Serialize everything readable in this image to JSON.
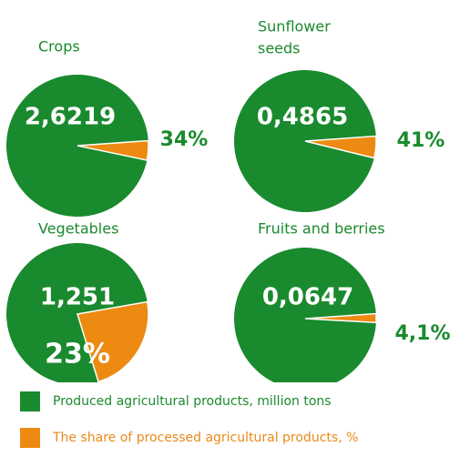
{
  "colors": {
    "produced": "#1a8a2e",
    "share": "#ec8a12",
    "share_text": "#e98a1a"
  },
  "chart_data": {
    "type": "pie",
    "charts": [
      {
        "title": [
          "Crops"
        ],
        "value_label": "2,6219",
        "share_percent": 34,
        "share_label": "34%"
      },
      {
        "title": [
          "Sunflower",
          "seeds"
        ],
        "value_label": "0,4865",
        "share_percent": 41,
        "share_label": "41%"
      },
      {
        "title": [
          "Vegetables"
        ],
        "value_label": "1,251",
        "share_percent": 23,
        "share_label": "23%"
      },
      {
        "title": [
          "Fruits and berries"
        ],
        "value_label": "0,0647",
        "share_percent": 4.1,
        "share_label": "4,1%"
      }
    ],
    "legend": [
      {
        "key": "produced",
        "label": "Produced agricultural products, million tons"
      },
      {
        "key": "share",
        "label": "The share of processed agricultural products, %"
      }
    ]
  }
}
